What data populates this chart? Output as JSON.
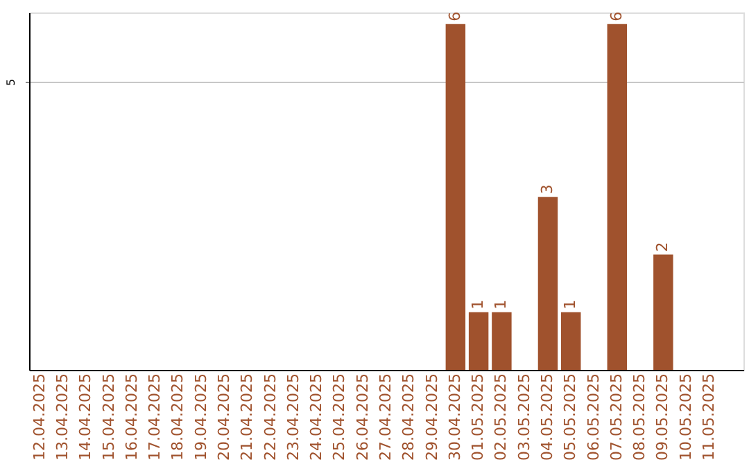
{
  "chart_data": {
    "type": "bar",
    "categories": [
      "12.04.2025",
      "13.04.2025",
      "14.04.2025",
      "15.04.2025",
      "16.04.2025",
      "17.04.2025",
      "18.04.2025",
      "19.04.2025",
      "20.04.2025",
      "21.04.2025",
      "22.04.2025",
      "23.04.2025",
      "24.04.2025",
      "25.04.2025",
      "26.04.2025",
      "27.04.2025",
      "28.04.2025",
      "29.04.2025",
      "30.04.2025",
      "01.05.2025",
      "02.05.2025",
      "03.05.2025",
      "04.05.2025",
      "05.05.2025",
      "06.05.2025",
      "07.05.2025",
      "08.05.2025",
      "09.05.2025",
      "10.05.2025",
      "11.05.2025"
    ],
    "values": [
      null,
      null,
      null,
      null,
      null,
      null,
      null,
      null,
      null,
      null,
      null,
      null,
      null,
      null,
      null,
      null,
      null,
      null,
      6,
      1,
      1,
      null,
      3,
      1,
      null,
      6,
      null,
      2,
      null,
      null
    ],
    "color": "#a0522d",
    "ylim": [
      0,
      6.2
    ],
    "yticks": [
      5
    ],
    "grid": "y",
    "data_labels": true
  }
}
